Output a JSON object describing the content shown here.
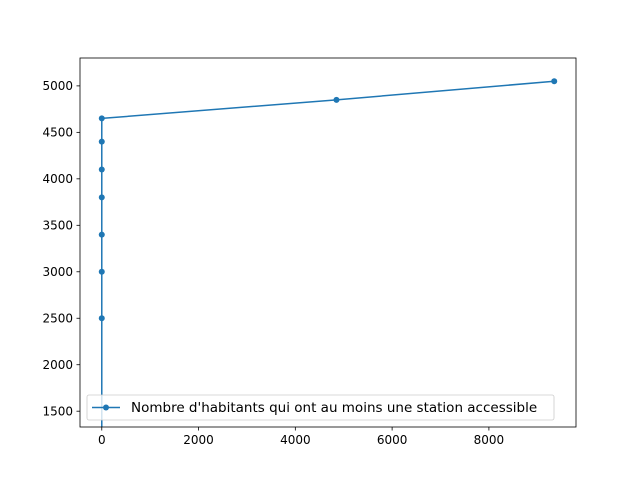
{
  "chart_data": {
    "type": "line",
    "title": "",
    "xlabel": "",
    "ylabel": "",
    "xlim": [
      -450,
      9800
    ],
    "ylim": [
      1330,
      5300
    ],
    "xticks": [
      0,
      2000,
      4000,
      6000,
      8000
    ],
    "yticks": [
      1500,
      2000,
      2500,
      3000,
      3500,
      4000,
      4500,
      5000
    ],
    "xtick_labels": [
      "0",
      "2000",
      "4000",
      "6000",
      "8000"
    ],
    "ytick_labels": [
      "1500",
      "2000",
      "2500",
      "3000",
      "3500",
      "4000",
      "4500",
      "5000"
    ],
    "grid": false,
    "legend_position": "lower-left",
    "series": [
      {
        "name": "Nombre d'habitants qui ont au moins une station accessible",
        "color": "#1f77b4",
        "marker": "circle",
        "points": [
          {
            "x": 0,
            "y": 1000
          },
          {
            "x": 0,
            "y": 2500
          },
          {
            "x": 0,
            "y": 3000
          },
          {
            "x": 0,
            "y": 3400
          },
          {
            "x": 0,
            "y": 3800
          },
          {
            "x": 0,
            "y": 4100
          },
          {
            "x": 0,
            "y": 4400
          },
          {
            "x": 0,
            "y": 4650
          },
          {
            "x": 4850,
            "y": 4850
          },
          {
            "x": 9350,
            "y": 5050
          }
        ]
      }
    ]
  }
}
